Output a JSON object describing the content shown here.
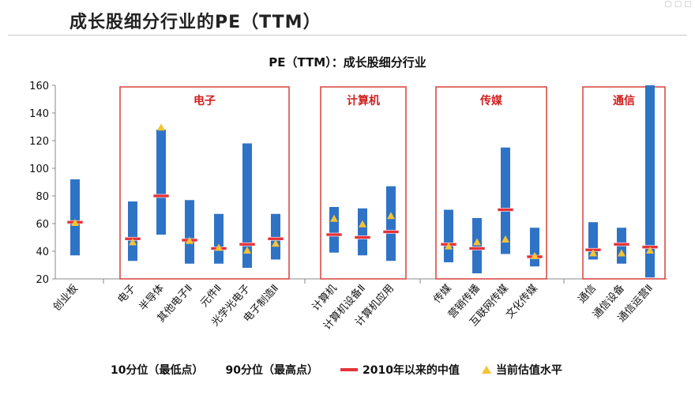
{
  "page": {
    "title": "成长股细分行业的PE（TTM）"
  },
  "chart_data": {
    "type": "bar",
    "title": "PE（TTM）：成长股细分行业",
    "ylim": [
      20,
      160
    ],
    "yticks": [
      20,
      40,
      60,
      80,
      100,
      120,
      140,
      160
    ],
    "grid": false,
    "legend_position": "bottom",
    "colors": {
      "range_bar": "#2f73c6",
      "median": "#e5333a",
      "current": "#f5c333",
      "group_box": "#d9413a"
    },
    "groups": [
      {
        "name": "电子",
        "members": [
          "电子",
          "半导体",
          "其他电子Ⅱ",
          "元件Ⅱ",
          "光学光电子",
          "电子制造Ⅱ"
        ]
      },
      {
        "name": "计算机",
        "members": [
          "计算机",
          "计算机设备Ⅱ",
          "计算机应用"
        ]
      },
      {
        "name": "传媒",
        "members": [
          "传媒",
          "营销传播",
          "互联网传媒",
          "文化传媒"
        ]
      },
      {
        "name": "通信",
        "members": [
          "通信",
          "通信设备",
          "通信运营Ⅱ"
        ]
      }
    ],
    "categories": [
      "创业板",
      "电子",
      "半导体",
      "其他电子Ⅱ",
      "元件Ⅱ",
      "光学光电子",
      "电子制造Ⅱ",
      "计算机",
      "计算机设备Ⅱ",
      "计算机应用",
      "传媒",
      "营销传播",
      "互联网传媒",
      "文化传媒",
      "通信",
      "通信设备",
      "通信运营Ⅱ"
    ],
    "series": [
      {
        "name": "10分位（最低点）",
        "values": [
          37,
          33,
          52,
          31,
          31,
          28,
          34,
          39,
          37,
          33,
          32,
          24,
          38,
          29,
          34,
          31,
          21
        ]
      },
      {
        "name": "90分位（最高点）",
        "values": [
          92,
          76,
          128,
          77,
          67,
          118,
          67,
          72,
          71,
          87,
          70,
          64,
          115,
          57,
          61,
          57,
          160
        ]
      },
      {
        "name": "2010年以来的中值",
        "values": [
          61,
          49,
          80,
          48,
          42,
          45,
          49,
          52,
          50,
          54,
          45,
          42,
          70,
          36,
          41,
          45,
          43
        ]
      },
      {
        "name": "当前估值水平",
        "values": [
          60,
          46,
          129,
          47,
          42,
          40,
          45,
          63,
          59,
          65,
          43,
          46,
          48,
          36,
          38,
          38,
          40
        ]
      }
    ]
  }
}
